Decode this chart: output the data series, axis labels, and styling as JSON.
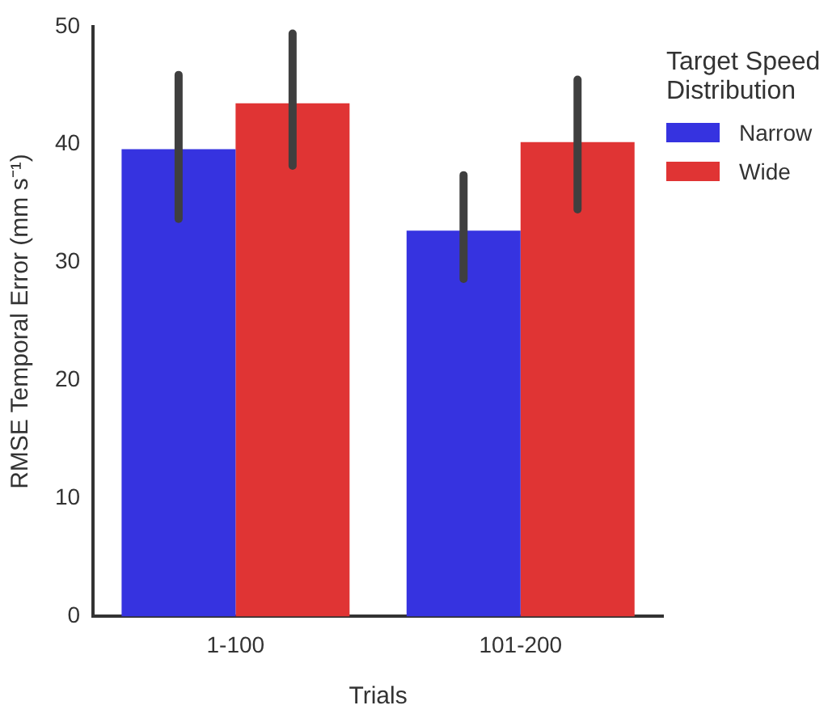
{
  "chart_data": {
    "type": "bar",
    "xlabel": "Trials",
    "ylabel": "RMSE Temporal Error (mm s⁻¹)",
    "legend_title": "Target Speed Distribution",
    "categories": [
      "1-100",
      "101-200"
    ],
    "series": [
      {
        "name": "Narrow",
        "color": "#3633e0",
        "values": [
          39.6,
          32.7
        ],
        "errors": [
          [
            33.7,
            45.9
          ],
          [
            28.6,
            37.4
          ]
        ]
      },
      {
        "name": "Wide",
        "color": "#e03434",
        "values": [
          43.5,
          40.2
        ],
        "errors": [
          [
            38.2,
            49.4
          ],
          [
            34.5,
            45.5
          ]
        ]
      }
    ],
    "ylim": [
      0,
      50
    ],
    "yticks": [
      0,
      10,
      20,
      30,
      40,
      50
    ],
    "grid": false,
    "legend": "top right"
  }
}
